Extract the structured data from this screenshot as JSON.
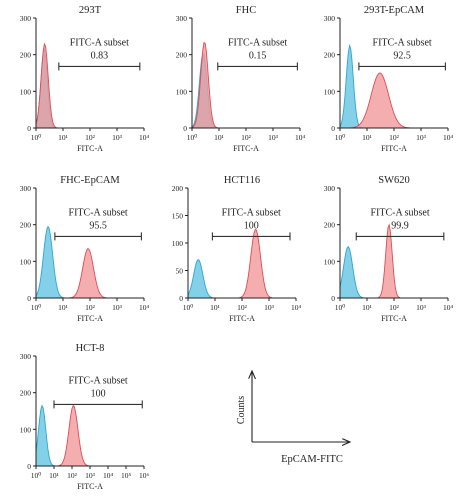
{
  "colors": {
    "control_fill": "#6ec8e4",
    "control_stroke": "#2aa7d2",
    "sample_fill": "#f29a9c",
    "sample_stroke": "#e04a54",
    "axis": "#222222",
    "gate": "#333333"
  },
  "shared": {
    "xlabel": "FITC-A",
    "gate_label": "FITC-A subset",
    "x_tick_labels": [
      "10⁰",
      "10¹",
      "10²",
      "10³",
      "10⁴"
    ]
  },
  "chart_data": [
    {
      "type": "area",
      "title": "293T",
      "xlabel": "FITC-A",
      "xscale": "log",
      "xlim": [
        1,
        10000
      ],
      "ylim": [
        0,
        300
      ],
      "y_ticks": [
        0,
        100,
        200,
        300
      ],
      "y_tick_labels": [
        "0",
        "100",
        "200",
        "300"
      ],
      "gate": {
        "label": "FITC-A subset",
        "value": "0.83",
        "x_range": [
          7,
          7000
        ]
      },
      "series": [
        {
          "role": "control",
          "peak_x": 2.0,
          "spread_log": 0.12,
          "peak_y": 215
        },
        {
          "role": "sample",
          "peak_x": 2.1,
          "spread_log": 0.13,
          "peak_y": 230
        }
      ]
    },
    {
      "type": "area",
      "title": "FHC",
      "xlabel": "FITC-A",
      "xscale": "log",
      "xlim": [
        1,
        10000
      ],
      "ylim": [
        0,
        300
      ],
      "y_ticks": [
        0,
        100,
        200,
        300
      ],
      "y_tick_labels": [
        "0",
        "100",
        "200",
        "300"
      ],
      "gate": {
        "label": "FITC-A subset",
        "value": "0.15",
        "x_range": [
          9,
          8000
        ]
      },
      "series": [
        {
          "role": "control",
          "peak_x": 2.6,
          "spread_log": 0.14,
          "peak_y": 205
        },
        {
          "role": "sample",
          "peak_x": 2.9,
          "spread_log": 0.14,
          "peak_y": 235
        }
      ]
    },
    {
      "type": "area",
      "title": "293T-EpCAM",
      "xlabel": "FITC-A",
      "xscale": "log",
      "xlim": [
        1,
        10000
      ],
      "ylim": [
        0,
        300
      ],
      "y_ticks": [
        0,
        100,
        200,
        300
      ],
      "y_tick_labels": [
        "0",
        "100",
        "200",
        "300"
      ],
      "gate": {
        "label": "FITC-A subset",
        "value": "92.5",
        "x_range": [
          5,
          8000
        ]
      },
      "series": [
        {
          "role": "control",
          "peak_x": 2.3,
          "spread_log": 0.13,
          "peak_y": 225
        },
        {
          "role": "sample",
          "peak_x": 30,
          "spread_log": 0.32,
          "peak_y": 150
        }
      ]
    },
    {
      "type": "area",
      "title": "FHC-EpCAM",
      "xlabel": "FITC-A",
      "xscale": "log",
      "xlim": [
        1,
        10000
      ],
      "ylim": [
        0,
        300
      ],
      "y_ticks": [
        0,
        100,
        200,
        300
      ],
      "y_tick_labels": [
        "0",
        "100",
        "200",
        "300"
      ],
      "gate": {
        "label": "FITC-A subset",
        "value": "95.5",
        "x_range": [
          5,
          8000
        ]
      },
      "series": [
        {
          "role": "control",
          "peak_x": 2.8,
          "spread_log": 0.17,
          "peak_y": 195
        },
        {
          "role": "sample",
          "peak_x": 85,
          "spread_log": 0.2,
          "peak_y": 135
        }
      ]
    },
    {
      "type": "area",
      "title": "HCT116",
      "xlabel": "FITC-A",
      "xscale": "log",
      "xlim": [
        1,
        10000
      ],
      "ylim": [
        0,
        200
      ],
      "y_ticks": [
        0,
        50,
        100,
        150,
        200
      ],
      "y_tick_labels": [
        "0",
        "50",
        "100",
        "150",
        "200"
      ],
      "gate": {
        "label": "FITC-A subset",
        "value": "100",
        "x_range": [
          8,
          6000
        ]
      },
      "series": [
        {
          "role": "control",
          "peak_x": 2.4,
          "spread_log": 0.17,
          "peak_y": 70
        },
        {
          "role": "sample",
          "peak_x": 320,
          "spread_log": 0.18,
          "peak_y": 125
        }
      ]
    },
    {
      "type": "area",
      "title": "SW620",
      "xlabel": "FITC-A",
      "xscale": "log",
      "xlim": [
        1,
        10000
      ],
      "ylim": [
        0,
        300
      ],
      "y_ticks": [
        0,
        100,
        200,
        300
      ],
      "y_tick_labels": [
        "0",
        "100",
        "200",
        "300"
      ],
      "gate": {
        "label": "FITC-A subset",
        "value": "99.9",
        "x_range": [
          4,
          7000
        ]
      },
      "series": [
        {
          "role": "control",
          "peak_x": 2.0,
          "spread_log": 0.17,
          "peak_y": 140
        },
        {
          "role": "sample",
          "peak_x": 65,
          "spread_log": 0.12,
          "peak_y": 200
        }
      ]
    },
    {
      "type": "area",
      "title": "HCT-8",
      "xlabel": "FITC-A",
      "xscale": "log",
      "xlim": [
        1,
        1000000
      ],
      "ylim": [
        0,
        300
      ],
      "y_ticks": [
        0,
        100,
        200,
        300
      ],
      "y_tick_labels": [
        "0",
        "100",
        "200",
        "300"
      ],
      "x_tick_labels": [
        "10⁰",
        "10¹",
        "10²",
        "10³",
        "10⁴",
        "10⁵",
        "10⁶"
      ],
      "gate": {
        "label": "FITC-A subset",
        "value": "100",
        "x_range": [
          10,
          800000
        ]
      },
      "series": [
        {
          "role": "control",
          "peak_x": 2.2,
          "spread_log": 0.2,
          "peak_y": 165
        },
        {
          "role": "sample",
          "peak_x": 120,
          "spread_log": 0.25,
          "peak_y": 165
        }
      ]
    }
  ],
  "legend_diagram": {
    "y_label": "Counts",
    "x_label": "EpCAM-FITC"
  }
}
